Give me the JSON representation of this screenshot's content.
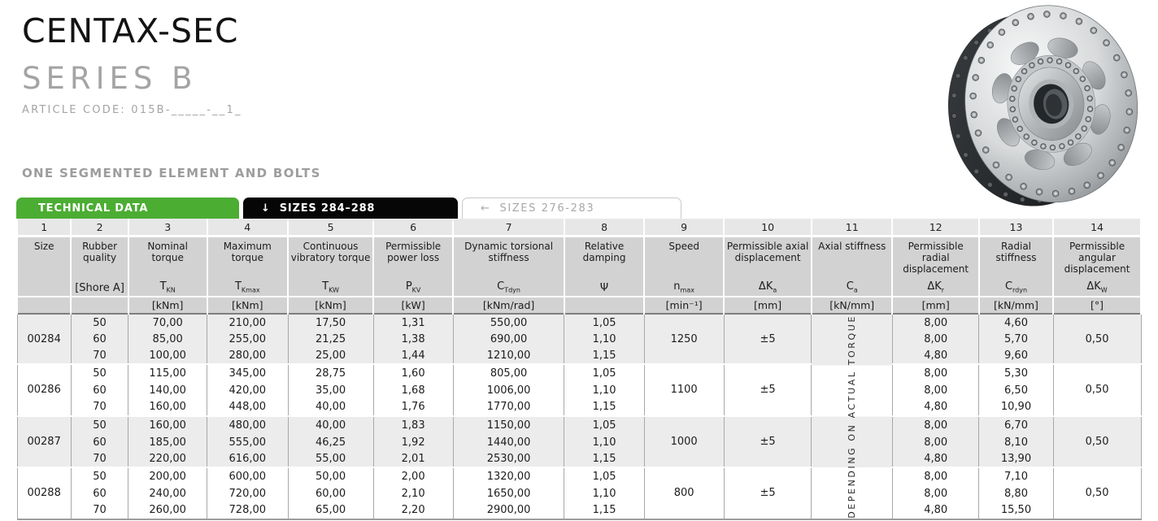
{
  "header": {
    "title": "CENTAX-SEC",
    "subtitle": "SERIES B",
    "article_code": "ARTICLE CODE: 015B-_____-__1_",
    "section_heading": "ONE SEGMENTED ELEMENT AND BOLTS"
  },
  "tabs": [
    {
      "label": "TECHNICAL DATA",
      "active": true
    },
    {
      "arrow": "↓",
      "label": "SIZES 284–288",
      "active": true
    },
    {
      "arrow": "←",
      "label": "SIZES 276-283",
      "active": false
    }
  ],
  "colors": {
    "accent_green": "#4cad33",
    "tab_black": "#060606",
    "muted_gray": "#9d9d9d",
    "header_gray": "#d2d2d2",
    "row_shade_gray": "#ececec"
  },
  "table": {
    "vertical_note": "DEPENDING ON ACTUAL TORQUE",
    "columns": [
      {
        "num": "1",
        "name": "Size",
        "symbol": "",
        "sub": "",
        "unit": ""
      },
      {
        "num": "2",
        "name": "Rubber quality",
        "symbol": "[Shore A]",
        "sub": "",
        "unit": ""
      },
      {
        "num": "3",
        "name": "Nominal torque",
        "symbol": "T",
        "sub": "KN",
        "unit": "[kNm]"
      },
      {
        "num": "4",
        "name": "Maximum torque",
        "symbol": "T",
        "sub": "Kmax",
        "unit": "[kNm]"
      },
      {
        "num": "5",
        "name": "Continuous vibratory torque",
        "symbol": "T",
        "sub": "KW",
        "unit": "[kNm]"
      },
      {
        "num": "6",
        "name": "Permissible power loss",
        "symbol": "P",
        "sub": "KV",
        "unit": "[kW]"
      },
      {
        "num": "7",
        "name": "Dynamic torsional stiffness",
        "symbol": "C",
        "sub": "Tdyn",
        "unit": "[kNm/rad]"
      },
      {
        "num": "8",
        "name": "Relative damping",
        "symbol": "Ψ",
        "sub": "",
        "unit": ""
      },
      {
        "num": "9",
        "name": "Speed",
        "symbol": "n",
        "sub": "max",
        "unit": "[min⁻¹]"
      },
      {
        "num": "10",
        "name": "Permissible axial displacement",
        "symbol": "ΔK",
        "sub": "a",
        "unit": "[mm]"
      },
      {
        "num": "11",
        "name": "Axial stiffness",
        "symbol": "C",
        "sub": "a",
        "unit": "[kN/mm]"
      },
      {
        "num": "12",
        "name": "Permissible radial displacement",
        "symbol": "ΔK",
        "sub": "r",
        "unit": "[mm]"
      },
      {
        "num": "13",
        "name": "Radial stiffness",
        "symbol": "C",
        "sub": "rdyn",
        "unit": "[kN/mm]"
      },
      {
        "num": "14",
        "name": "Permissible angular displacement",
        "symbol": "ΔK",
        "sub": "W",
        "unit": "[°]"
      }
    ],
    "groups": [
      {
        "size": "00284",
        "speed": "1250",
        "axial_displacement": "±5",
        "angular_displacement": "0,50",
        "rows": [
          {
            "shore": "50",
            "nominal": "70,00",
            "maximum": "210,00",
            "vibratory": "17,50",
            "power_loss": "1,31",
            "stiffness": "550,00",
            "damping": "1,05",
            "radial_displacement": "8,00",
            "radial_stiffness": "4,60"
          },
          {
            "shore": "60",
            "nominal": "85,00",
            "maximum": "255,00",
            "vibratory": "21,25",
            "power_loss": "1,38",
            "stiffness": "690,00",
            "damping": "1,10",
            "radial_displacement": "8,00",
            "radial_stiffness": "5,70"
          },
          {
            "shore": "70",
            "nominal": "100,00",
            "maximum": "280,00",
            "vibratory": "25,00",
            "power_loss": "1,44",
            "stiffness": "1210,00",
            "damping": "1,15",
            "radial_displacement": "4,80",
            "radial_stiffness": "9,60"
          }
        ]
      },
      {
        "size": "00286",
        "speed": "1100",
        "axial_displacement": "±5",
        "angular_displacement": "0,50",
        "rows": [
          {
            "shore": "50",
            "nominal": "115,00",
            "maximum": "345,00",
            "vibratory": "28,75",
            "power_loss": "1,60",
            "stiffness": "805,00",
            "damping": "1,05",
            "radial_displacement": "8,00",
            "radial_stiffness": "5,30"
          },
          {
            "shore": "60",
            "nominal": "140,00",
            "maximum": "420,00",
            "vibratory": "35,00",
            "power_loss": "1,68",
            "stiffness": "1006,00",
            "damping": "1,10",
            "radial_displacement": "8,00",
            "radial_stiffness": "6,50"
          },
          {
            "shore": "70",
            "nominal": "160,00",
            "maximum": "448,00",
            "vibratory": "40,00",
            "power_loss": "1,76",
            "stiffness": "1770,00",
            "damping": "1,15",
            "radial_displacement": "4,80",
            "radial_stiffness": "10,90"
          }
        ]
      },
      {
        "size": "00287",
        "speed": "1000",
        "axial_displacement": "±5",
        "angular_displacement": "0,50",
        "rows": [
          {
            "shore": "50",
            "nominal": "160,00",
            "maximum": "480,00",
            "vibratory": "40,00",
            "power_loss": "1,83",
            "stiffness": "1150,00",
            "damping": "1,05",
            "radial_displacement": "8,00",
            "radial_stiffness": "6,70"
          },
          {
            "shore": "60",
            "nominal": "185,00",
            "maximum": "555,00",
            "vibratory": "46,25",
            "power_loss": "1,92",
            "stiffness": "1440,00",
            "damping": "1,10",
            "radial_displacement": "8,00",
            "radial_stiffness": "8,10"
          },
          {
            "shore": "70",
            "nominal": "220,00",
            "maximum": "616,00",
            "vibratory": "55,00",
            "power_loss": "2,01",
            "stiffness": "2530,00",
            "damping": "1,15",
            "radial_displacement": "4,80",
            "radial_stiffness": "13,90"
          }
        ]
      },
      {
        "size": "00288",
        "speed": "800",
        "axial_displacement": "±5",
        "angular_displacement": "0,50",
        "rows": [
          {
            "shore": "50",
            "nominal": "200,00",
            "maximum": "600,00",
            "vibratory": "50,00",
            "power_loss": "2,00",
            "stiffness": "1320,00",
            "damping": "1,05",
            "radial_displacement": "8,00",
            "radial_stiffness": "7,10"
          },
          {
            "shore": "60",
            "nominal": "240,00",
            "maximum": "720,00",
            "vibratory": "60,00",
            "power_loss": "2,10",
            "stiffness": "1650,00",
            "damping": "1,10",
            "radial_displacement": "8,00",
            "radial_stiffness": "8,80"
          },
          {
            "shore": "70",
            "nominal": "260,00",
            "maximum": "728,00",
            "vibratory": "65,00",
            "power_loss": "2,20",
            "stiffness": "2900,00",
            "damping": "1,15",
            "radial_displacement": "4,80",
            "radial_stiffness": "15,50"
          }
        ]
      }
    ]
  }
}
